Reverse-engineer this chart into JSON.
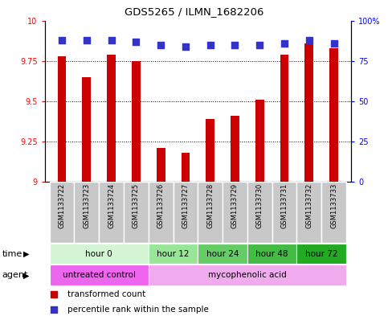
{
  "title": "GDS5265 / ILMN_1682206",
  "samples": [
    "GSM1133722",
    "GSM1133723",
    "GSM1133724",
    "GSM1133725",
    "GSM1133726",
    "GSM1133727",
    "GSM1133728",
    "GSM1133729",
    "GSM1133730",
    "GSM1133731",
    "GSM1133732",
    "GSM1133733"
  ],
  "transformed_count": [
    9.78,
    9.65,
    9.79,
    9.75,
    9.21,
    9.18,
    9.39,
    9.41,
    9.51,
    9.79,
    9.86,
    9.83
  ],
  "percentile_rank": [
    88,
    88,
    88,
    87,
    85,
    84,
    85,
    85,
    85,
    86,
    88,
    86
  ],
  "ylim_left": [
    9.0,
    10.0
  ],
  "ylim_right": [
    0,
    100
  ],
  "yticks_left": [
    9.0,
    9.25,
    9.5,
    9.75,
    10.0
  ],
  "yticks_right": [
    0,
    25,
    50,
    75,
    100
  ],
  "ytick_labels_left": [
    "9",
    "9.25",
    "9.5",
    "9.75",
    "10"
  ],
  "ytick_labels_right": [
    "0",
    "25",
    "50",
    "75",
    "100%"
  ],
  "bar_color": "#cc0000",
  "dot_color": "#3333cc",
  "time_groups": [
    {
      "label": "hour 0",
      "start": 0,
      "end": 3,
      "color": "#d4f5d4"
    },
    {
      "label": "hour 12",
      "start": 4,
      "end": 5,
      "color": "#99e699"
    },
    {
      "label": "hour 24",
      "start": 6,
      "end": 7,
      "color": "#66cc66"
    },
    {
      "label": "hour 48",
      "start": 8,
      "end": 9,
      "color": "#44bb44"
    },
    {
      "label": "hour 72",
      "start": 10,
      "end": 11,
      "color": "#22aa22"
    }
  ],
  "agent_groups": [
    {
      "label": "untreated control",
      "start": 0,
      "end": 3,
      "color": "#ee66ee"
    },
    {
      "label": "mycophenolic acid",
      "start": 4,
      "end": 11,
      "color": "#f0aaee"
    }
  ],
  "bar_width": 0.35,
  "dot_size": 40,
  "sample_bg_color": "#c8c8c8",
  "sample_border_color": "#ffffff"
}
